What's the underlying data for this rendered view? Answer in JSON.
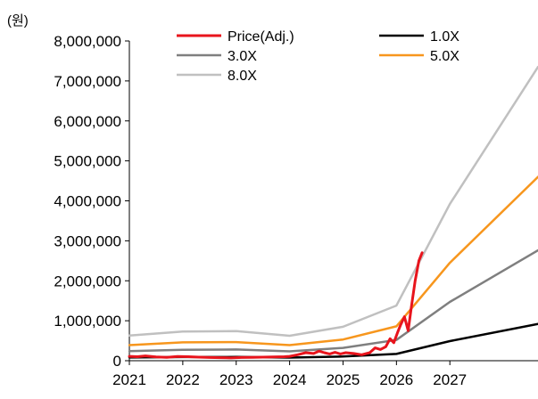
{
  "chart_data": {
    "type": "line",
    "unit_label": "(원)",
    "x_ticks": [
      "2021",
      "2022",
      "2023",
      "2024",
      "2025",
      "2026",
      "2027"
    ],
    "y_ticks": [
      "0",
      "1,000,000",
      "2,000,000",
      "3,000,000",
      "4,000,000",
      "5,000,000",
      "6,000,000",
      "7,000,000",
      "8,000,000"
    ],
    "ylim": [
      0,
      8000000
    ],
    "xlim": [
      2021.0,
      2028.65
    ],
    "grid": false,
    "legend_placement": "top",
    "series": [
      {
        "name": "Price(Adj.)",
        "color": "#e8141c",
        "width": 3,
        "points": [
          [
            2021.0,
            110000
          ],
          [
            2021.15,
            100000
          ],
          [
            2021.3,
            120000
          ],
          [
            2021.5,
            95000
          ],
          [
            2021.7,
            85000
          ],
          [
            2021.9,
            105000
          ],
          [
            2022.1,
            100000
          ],
          [
            2022.3,
            90000
          ],
          [
            2022.5,
            80000
          ],
          [
            2022.7,
            75000
          ],
          [
            2022.9,
            70000
          ],
          [
            2023.1,
            80000
          ],
          [
            2023.3,
            85000
          ],
          [
            2023.5,
            90000
          ],
          [
            2023.7,
            95000
          ],
          [
            2023.9,
            100000
          ],
          [
            2024.0,
            110000
          ],
          [
            2024.15,
            150000
          ],
          [
            2024.3,
            200000
          ],
          [
            2024.45,
            180000
          ],
          [
            2024.55,
            240000
          ],
          [
            2024.65,
            200000
          ],
          [
            2024.75,
            170000
          ],
          [
            2024.85,
            210000
          ],
          [
            2024.95,
            170000
          ],
          [
            2025.05,
            200000
          ],
          [
            2025.2,
            180000
          ],
          [
            2025.35,
            150000
          ],
          [
            2025.5,
            200000
          ],
          [
            2025.6,
            320000
          ],
          [
            2025.7,
            280000
          ],
          [
            2025.8,
            350000
          ],
          [
            2025.88,
            550000
          ],
          [
            2025.95,
            450000
          ],
          [
            2026.02,
            700000
          ],
          [
            2026.08,
            900000
          ],
          [
            2026.15,
            1100000
          ],
          [
            2026.22,
            750000
          ],
          [
            2026.28,
            1350000
          ],
          [
            2026.35,
            2000000
          ],
          [
            2026.42,
            2500000
          ],
          [
            2026.48,
            2700000
          ]
        ]
      },
      {
        "name": "1.0X",
        "color": "#000000",
        "width": 2.5,
        "points": [
          [
            2021.0,
            80000
          ],
          [
            2022.0,
            92000
          ],
          [
            2023.0,
            93000
          ],
          [
            2024.0,
            78000
          ],
          [
            2025.0,
            105000
          ],
          [
            2026.0,
            170000
          ],
          [
            2027.0,
            490000
          ],
          [
            2028.65,
            920000
          ]
        ]
      },
      {
        "name": "3.0X",
        "color": "#7f7f7f",
        "width": 2.5,
        "points": [
          [
            2021.0,
            240000
          ],
          [
            2022.0,
            275000
          ],
          [
            2023.0,
            280000
          ],
          [
            2024.0,
            235000
          ],
          [
            2025.0,
            320000
          ],
          [
            2026.0,
            520000
          ],
          [
            2027.0,
            1470000
          ],
          [
            2028.65,
            2760000
          ]
        ]
      },
      {
        "name": "5.0X",
        "color": "#f7961d",
        "width": 2.5,
        "points": [
          [
            2021.0,
            390000
          ],
          [
            2022.0,
            460000
          ],
          [
            2023.0,
            465000
          ],
          [
            2024.0,
            390000
          ],
          [
            2025.0,
            530000
          ],
          [
            2026.0,
            860000
          ],
          [
            2027.0,
            2450000
          ],
          [
            2028.65,
            4600000
          ]
        ]
      },
      {
        "name": "8.0X",
        "color": "#c0c0c0",
        "width": 2.5,
        "points": [
          [
            2021.0,
            630000
          ],
          [
            2022.0,
            730000
          ],
          [
            2023.0,
            740000
          ],
          [
            2024.0,
            625000
          ],
          [
            2025.0,
            850000
          ],
          [
            2026.0,
            1380000
          ],
          [
            2027.0,
            3920000
          ],
          [
            2028.65,
            7350000
          ]
        ]
      }
    ]
  }
}
